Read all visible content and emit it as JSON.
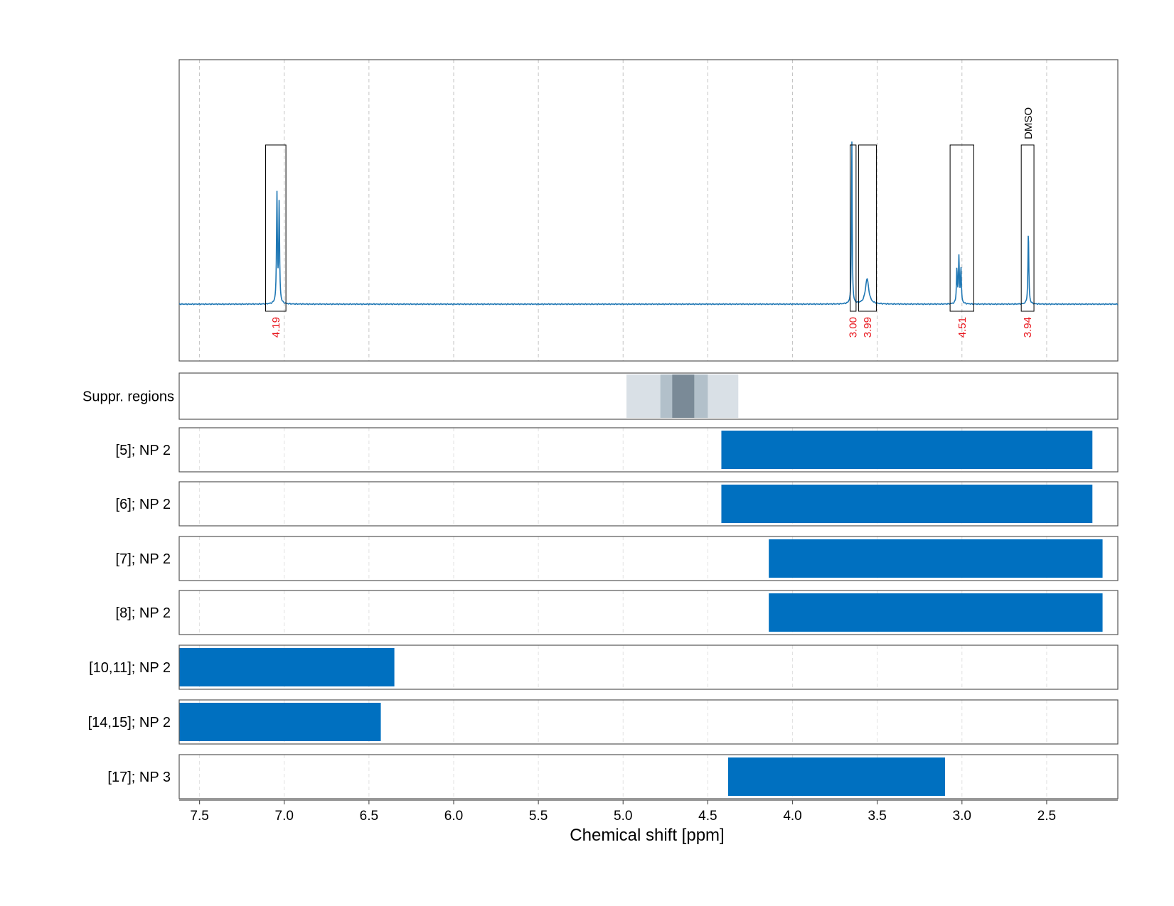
{
  "chart_data": {
    "type": "nmr_spectrum_with_region_bars",
    "xlabel": "Chemical shift [ppm]",
    "xlim": [
      7.62,
      2.08
    ],
    "xticks": [
      7.5,
      7.0,
      6.5,
      6.0,
      5.5,
      5.0,
      4.5,
      4.0,
      3.5,
      3.0,
      2.5
    ],
    "xtick_labels": [
      "7.5",
      "7.0",
      "6.5",
      "6.0",
      "5.5",
      "5.0",
      "4.5",
      "4.0",
      "3.5",
      "3.0",
      "2.5"
    ],
    "grid": true,
    "spectrum": {
      "color": "#1f77b4",
      "baseline": 0,
      "peaks": [
        {
          "ppm": 7.043,
          "height": 0.62,
          "width": 0.003
        },
        {
          "ppm": 7.03,
          "height": 0.57,
          "width": 0.003
        },
        {
          "ppm": 3.65,
          "height": 0.95,
          "width": 0.0025
        },
        {
          "ppm": 3.56,
          "height": 0.145,
          "width": 0.012
        },
        {
          "ppm": 3.03,
          "height": 0.2,
          "width": 0.003
        },
        {
          "ppm": 3.018,
          "height": 0.26,
          "width": 0.003
        },
        {
          "ppm": 3.006,
          "height": 0.2,
          "width": 0.003
        },
        {
          "ppm": 2.608,
          "height": 0.42,
          "width": 0.003
        }
      ]
    },
    "integration_regions": [
      {
        "from": 7.11,
        "to": 6.99,
        "integral": "4.19",
        "annotation": ""
      },
      {
        "from": 3.66,
        "to": 3.625,
        "integral": "3.00",
        "annotation": ""
      },
      {
        "from": 3.61,
        "to": 3.505,
        "integral": "3.99",
        "annotation": ""
      },
      {
        "from": 3.07,
        "to": 2.93,
        "integral": "4.51",
        "annotation": ""
      },
      {
        "from": 2.65,
        "to": 2.575,
        "integral": "3.94",
        "annotation": "DMSO"
      }
    ],
    "suppression_regions": {
      "label": "Suppr. regions",
      "bands": [
        {
          "from": 4.98,
          "to": 4.32,
          "level": "light"
        },
        {
          "from": 4.78,
          "to": 4.5,
          "level": "medium"
        },
        {
          "from": 4.71,
          "to": 4.58,
          "level": "dark"
        }
      ]
    },
    "series": [
      {
        "name": "[5]; NP 2",
        "from": 4.42,
        "to": 2.23
      },
      {
        "name": "[6]; NP 2",
        "from": 4.42,
        "to": 2.23
      },
      {
        "name": "[7]; NP 2",
        "from": 4.14,
        "to": 2.17
      },
      {
        "name": "[8]; NP 2",
        "from": 4.14,
        "to": 2.17
      },
      {
        "name": "[10,11]; NP 2",
        "from": 7.62,
        "to": 6.35
      },
      {
        "name": "[14,15]; NP 2",
        "from": 7.62,
        "to": 6.43
      },
      {
        "name": "[17]; NP 3",
        "from": 4.38,
        "to": 3.1
      }
    ],
    "colors": {
      "bar": "#0070c0",
      "integral_text": "#e8141b",
      "suppr_light": "#d9e0e6",
      "suppr_medium": "#b2c0ca",
      "suppr_dark": "#7a8a97"
    }
  }
}
